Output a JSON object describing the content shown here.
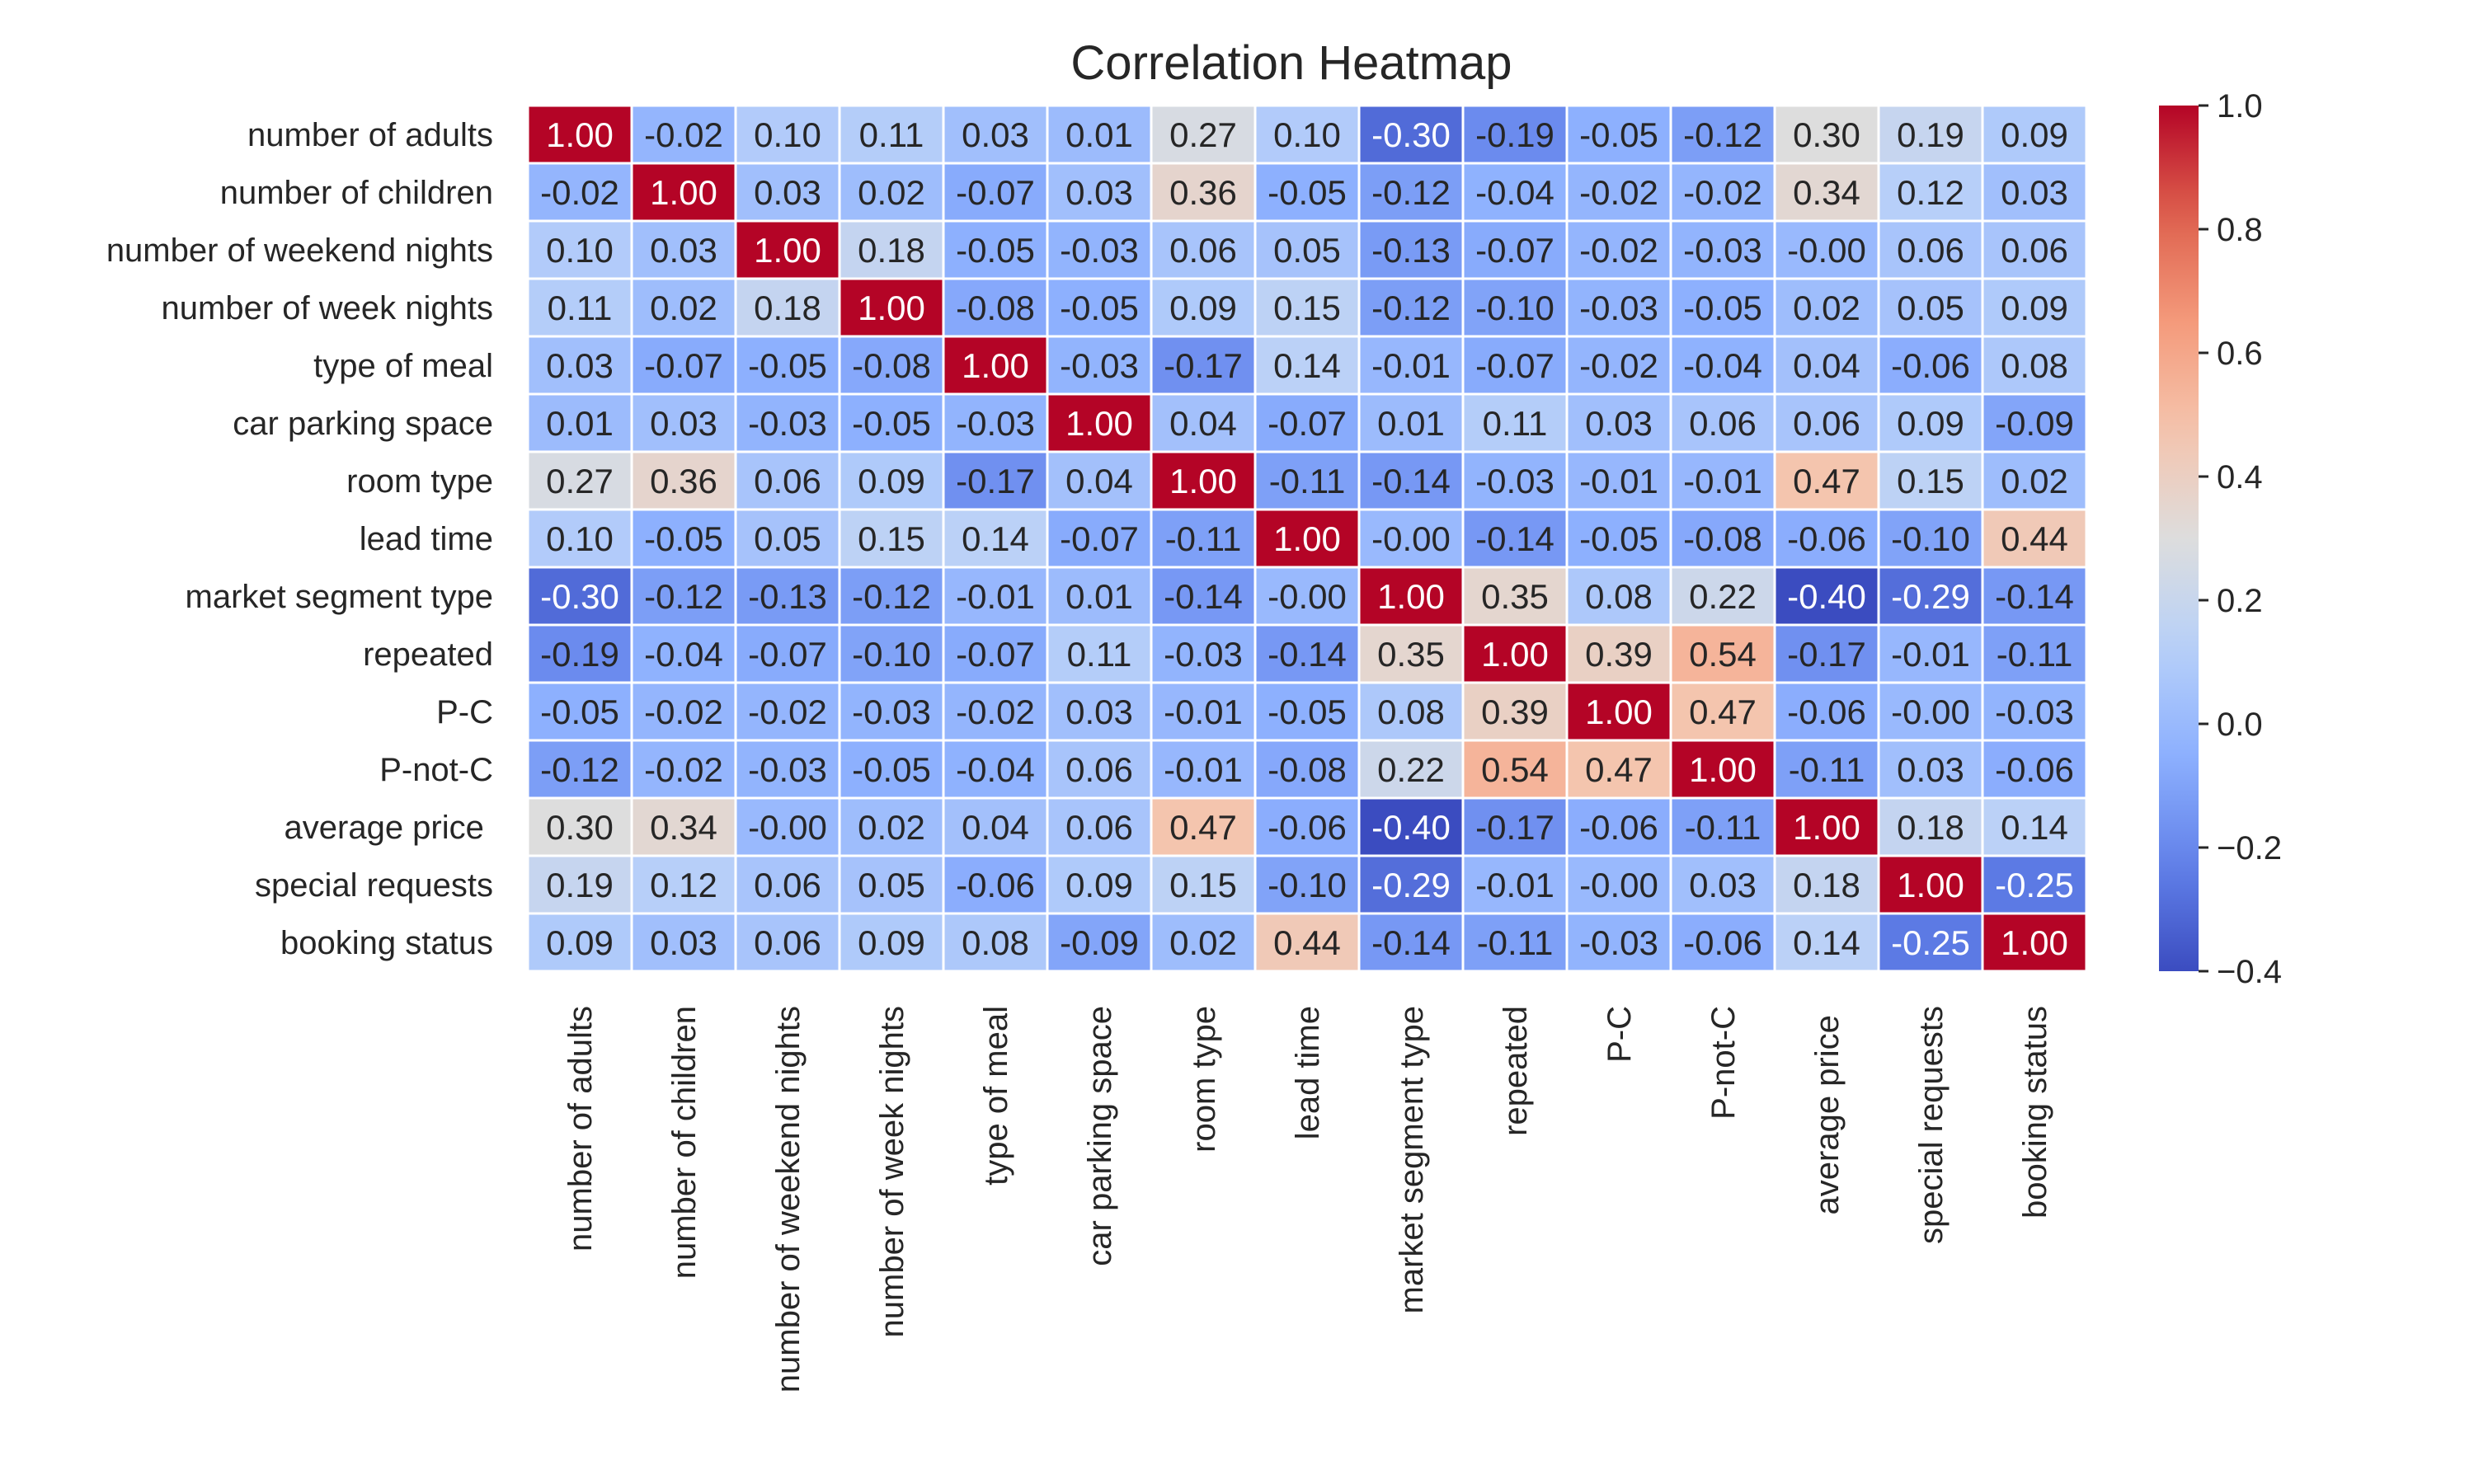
{
  "chart_data": {
    "type": "heatmap",
    "title": "Correlation Heatmap",
    "labels": [
      "number of adults",
      "number of children",
      "number of weekend nights",
      "number of week nights",
      "type of meal",
      "car parking space",
      "room type",
      "lead time",
      "market segment type",
      "repeated",
      "P-C",
      "P-not-C",
      "average price ",
      "special requests",
      "booking status"
    ],
    "values": [
      [
        "1.00",
        "-0.02",
        "0.10",
        "0.11",
        "0.03",
        "0.01",
        "0.27",
        "0.10",
        "-0.30",
        "-0.19",
        "-0.05",
        "-0.12",
        "0.30",
        "0.19",
        "0.09"
      ],
      [
        "-0.02",
        "1.00",
        "0.03",
        "0.02",
        "-0.07",
        "0.03",
        "0.36",
        "-0.05",
        "-0.12",
        "-0.04",
        "-0.02",
        "-0.02",
        "0.34",
        "0.12",
        "0.03"
      ],
      [
        "0.10",
        "0.03",
        "1.00",
        "0.18",
        "-0.05",
        "-0.03",
        "0.06",
        "0.05",
        "-0.13",
        "-0.07",
        "-0.02",
        "-0.03",
        "-0.00",
        "0.06",
        "0.06"
      ],
      [
        "0.11",
        "0.02",
        "0.18",
        "1.00",
        "-0.08",
        "-0.05",
        "0.09",
        "0.15",
        "-0.12",
        "-0.10",
        "-0.03",
        "-0.05",
        "0.02",
        "0.05",
        "0.09"
      ],
      [
        "0.03",
        "-0.07",
        "-0.05",
        "-0.08",
        "1.00",
        "-0.03",
        "-0.17",
        "0.14",
        "-0.01",
        "-0.07",
        "-0.02",
        "-0.04",
        "0.04",
        "-0.06",
        "0.08"
      ],
      [
        "0.01",
        "0.03",
        "-0.03",
        "-0.05",
        "-0.03",
        "1.00",
        "0.04",
        "-0.07",
        "0.01",
        "0.11",
        "0.03",
        "0.06",
        "0.06",
        "0.09",
        "-0.09"
      ],
      [
        "0.27",
        "0.36",
        "0.06",
        "0.09",
        "-0.17",
        "0.04",
        "1.00",
        "-0.11",
        "-0.14",
        "-0.03",
        "-0.01",
        "-0.01",
        "0.47",
        "0.15",
        "0.02"
      ],
      [
        "0.10",
        "-0.05",
        "0.05",
        "0.15",
        "0.14",
        "-0.07",
        "-0.11",
        "1.00",
        "-0.00",
        "-0.14",
        "-0.05",
        "-0.08",
        "-0.06",
        "-0.10",
        "0.44"
      ],
      [
        "-0.30",
        "-0.12",
        "-0.13",
        "-0.12",
        "-0.01",
        "0.01",
        "-0.14",
        "-0.00",
        "1.00",
        "0.35",
        "0.08",
        "0.22",
        "-0.40",
        "-0.29",
        "-0.14"
      ],
      [
        "-0.19",
        "-0.04",
        "-0.07",
        "-0.10",
        "-0.07",
        "0.11",
        "-0.03",
        "-0.14",
        "0.35",
        "1.00",
        "0.39",
        "0.54",
        "-0.17",
        "-0.01",
        "-0.11"
      ],
      [
        "-0.05",
        "-0.02",
        "-0.02",
        "-0.03",
        "-0.02",
        "0.03",
        "-0.01",
        "-0.05",
        "0.08",
        "0.39",
        "1.00",
        "0.47",
        "-0.06",
        "-0.00",
        "-0.03"
      ],
      [
        "-0.12",
        "-0.02",
        "-0.03",
        "-0.05",
        "-0.04",
        "0.06",
        "-0.01",
        "-0.08",
        "0.22",
        "0.54",
        "0.47",
        "1.00",
        "-0.11",
        "0.03",
        "-0.06"
      ],
      [
        "0.30",
        "0.34",
        "-0.00",
        "0.02",
        "0.04",
        "0.06",
        "0.47",
        "-0.06",
        "-0.40",
        "-0.17",
        "-0.06",
        "-0.11",
        "1.00",
        "0.18",
        "0.14"
      ],
      [
        "0.19",
        "0.12",
        "0.06",
        "0.05",
        "-0.06",
        "0.09",
        "0.15",
        "-0.10",
        "-0.29",
        "-0.01",
        "-0.00",
        "0.03",
        "0.18",
        "1.00",
        "-0.25"
      ],
      [
        "0.09",
        "0.03",
        "0.06",
        "0.09",
        "0.08",
        "-0.09",
        "0.02",
        "0.44",
        "-0.14",
        "-0.11",
        "-0.03",
        "-0.06",
        "0.14",
        "-0.25",
        "1.00"
      ]
    ],
    "colormap": "coolwarm",
    "vmin": -0.4,
    "vmax": 1.0,
    "colorbar_ticks": [
      "1.0",
      "0.8",
      "0.6",
      "0.4",
      "0.2",
      "0.0",
      "−0.2",
      "−0.4"
    ],
    "cell_border_color": "#ffffff",
    "grid": false
  }
}
